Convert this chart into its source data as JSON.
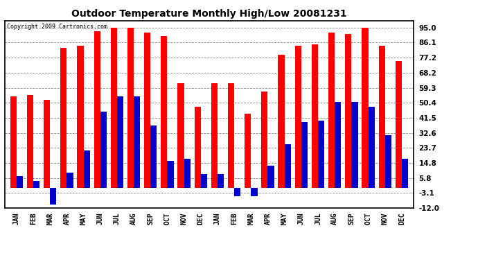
{
  "title": "Outdoor Temperature Monthly High/Low 20081231",
  "copyright": "Copyright 2009 Cartronics.com",
  "months": [
    "JAN",
    "FEB",
    "MAR",
    "APR",
    "MAY",
    "JUN",
    "JUL",
    "AUG",
    "SEP",
    "OCT",
    "NOV",
    "DEC",
    "JAN",
    "FEB",
    "MAR",
    "APR",
    "MAY",
    "JUN",
    "JUL",
    "AUG",
    "SEP",
    "OCT",
    "NOV",
    "DEC"
  ],
  "highs": [
    54,
    55,
    52,
    83,
    84,
    93,
    95,
    95,
    92,
    90,
    62,
    48,
    62,
    62,
    44,
    57,
    79,
    84,
    85,
    92,
    91,
    95,
    84,
    75
  ],
  "lows": [
    7,
    4,
    -10,
    9,
    22,
    45,
    54,
    54,
    37,
    16,
    17,
    8,
    8,
    -5,
    -5,
    13,
    26,
    39,
    40,
    51,
    51,
    48,
    31,
    17
  ],
  "high_color": "#ff0000",
  "low_color": "#0000cc",
  "background_color": "#ffffff",
  "plot_background": "#ffffff",
  "grid_color": "#888888",
  "yticks": [
    95.0,
    86.1,
    77.2,
    68.2,
    59.3,
    50.4,
    41.5,
    32.6,
    23.7,
    14.8,
    5.8,
    -3.1,
    -12.0
  ],
  "ymin": -12.0,
  "ymax": 99.0,
  "bar_width": 0.38
}
